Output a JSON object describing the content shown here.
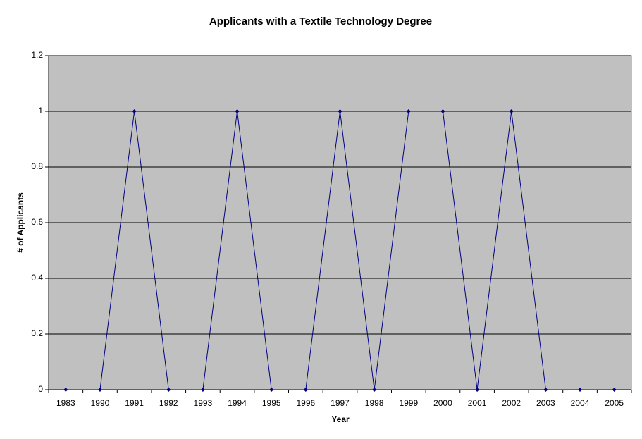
{
  "chart_data": {
    "type": "line",
    "title": "Applicants with a Textile Technology Degree",
    "x_label": "Year",
    "y_label": "# of Applicants",
    "categories": [
      "1983",
      "1990",
      "1991",
      "1992",
      "1993",
      "1994",
      "1995",
      "1996",
      "1997",
      "1998",
      "1999",
      "2000",
      "2001",
      "2002",
      "2003",
      "2004",
      "2005"
    ],
    "values": [
      0,
      0,
      1,
      0,
      0,
      1,
      0,
      0,
      1,
      0,
      1,
      1,
      0,
      1,
      0,
      0,
      0
    ],
    "color": "#000080",
    "ylim": [
      0,
      1.2
    ],
    "yticks": [
      0,
      0.2,
      0.4,
      0.6,
      0.8,
      1,
      1.2
    ],
    "grid": true
  }
}
